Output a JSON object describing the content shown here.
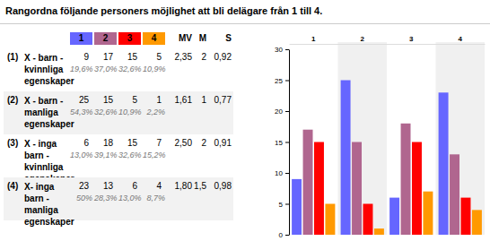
{
  "title": "Rangordna följande personers möjlighet att bli delägare från 1 till 4.",
  "table": {
    "columns": [
      "MV",
      "M",
      "S"
    ],
    "rows": [
      {
        "number": "(1)",
        "label": "X - barn - kvinnliga egenskaper",
        "percentages": [
          "19,6%",
          "37,0%",
          "32,6%",
          "10,9%"
        ],
        "stats": [
          "2,35",
          "2",
          "0,92"
        ]
      },
      {
        "number": "(2)",
        "label": "X - barn - manliga egenskaper",
        "percentages": [
          "54,3%",
          "32,6%",
          "10,9%",
          "2,2%"
        ],
        "stats": [
          "1,61",
          "1",
          "0,77"
        ]
      },
      {
        "number": "(3)",
        "label": "X - inga barn - kvinnliga egenskaper",
        "percentages": [
          "13,0%",
          "39,1%",
          "32,6%",
          "15,2%"
        ],
        "stats": [
          "2,50",
          "2",
          "0,91"
        ]
      },
      {
        "number": "(4)",
        "label": "X- inga barn - manliga egenskaper",
        "percentages": [
          "50%",
          "28,3%",
          "13,0%",
          "8,7%"
        ],
        "stats": [
          "1,80",
          "1,5",
          "0,98"
        ]
      }
    ]
  },
  "chart_data": {
    "type": "bar",
    "categories": [
      "1",
      "2",
      "3",
      "4"
    ],
    "series": [
      {
        "name": "1",
        "color": "#6666ff",
        "values": [
          9,
          25,
          6,
          23
        ]
      },
      {
        "name": "2",
        "color": "#b0668f",
        "values": [
          17,
          15,
          18,
          13
        ]
      },
      {
        "name": "3",
        "color": "#ff0000",
        "values": [
          15,
          5,
          15,
          6
        ]
      },
      {
        "name": "4",
        "color": "#ff9900",
        "values": [
          5,
          1,
          7,
          4
        ]
      }
    ],
    "ylim": [
      0,
      30
    ],
    "yticks": [
      0,
      5,
      10,
      15,
      20,
      25,
      30
    ]
  }
}
